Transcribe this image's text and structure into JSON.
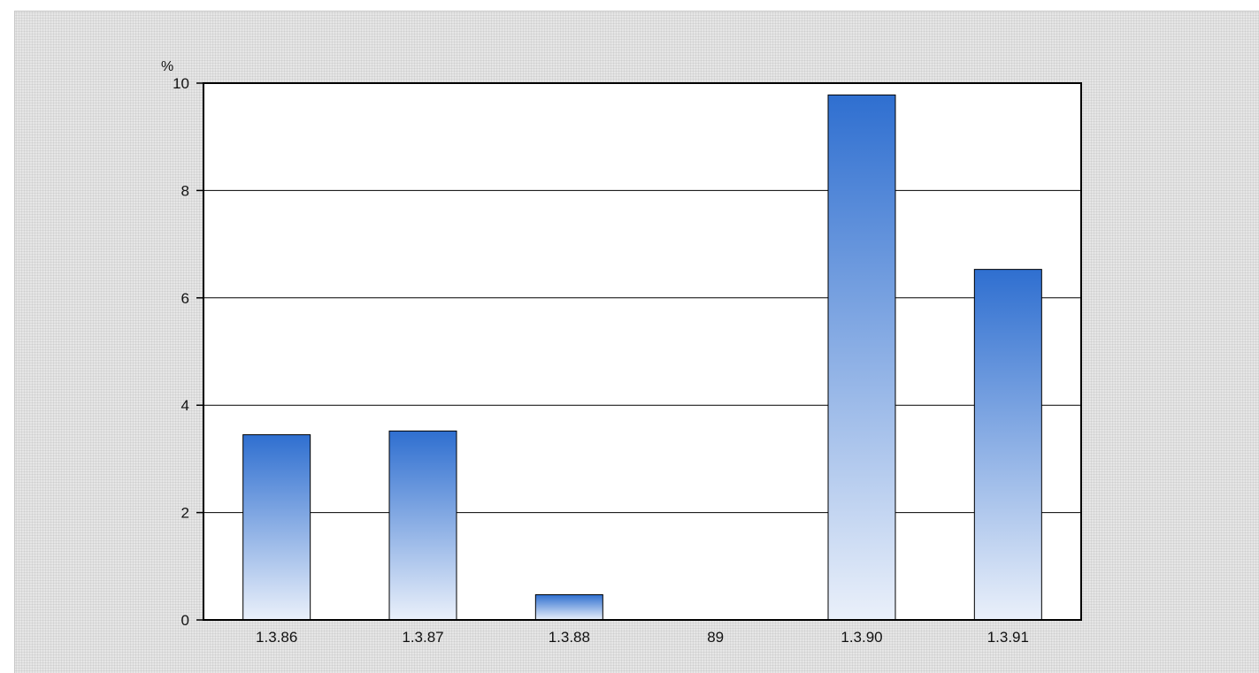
{
  "chart_data": {
    "type": "bar",
    "categories": [
      "1.3.86",
      "1.3.87",
      "1.3.88",
      "89",
      "1.3.90",
      "1.3.91"
    ],
    "values": [
      3.45,
      3.52,
      0.47,
      0,
      9.78,
      6.53
    ],
    "title": "",
    "xlabel": "",
    "ylabel": "%",
    "ylim": [
      0,
      10
    ],
    "yticks": [
      "0",
      "2",
      "4",
      "6",
      "8",
      "10"
    ],
    "grid": true,
    "legend": "none",
    "colors": {
      "bar_top": "#2f6fd0",
      "bar_bottom": "#eaf0fa",
      "plot_background": "#ffffff",
      "frame_background": "#e6e6e6"
    }
  }
}
